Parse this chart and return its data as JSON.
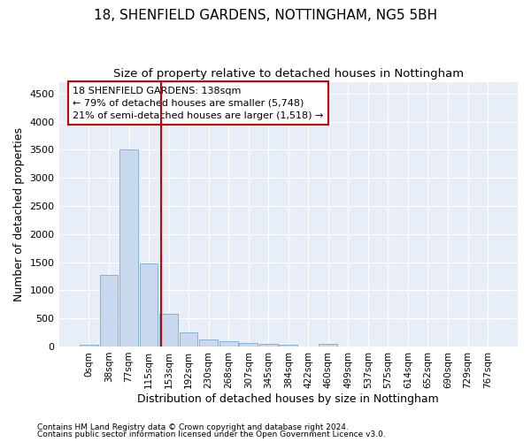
{
  "title": "18, SHENFIELD GARDENS, NOTTINGHAM, NG5 5BH",
  "subtitle": "Size of property relative to detached houses in Nottingham",
  "xlabel": "Distribution of detached houses by size in Nottingham",
  "ylabel": "Number of detached properties",
  "bar_labels": [
    "0sqm",
    "38sqm",
    "77sqm",
    "115sqm",
    "153sqm",
    "192sqm",
    "230sqm",
    "268sqm",
    "307sqm",
    "345sqm",
    "384sqm",
    "422sqm",
    "460sqm",
    "499sqm",
    "537sqm",
    "575sqm",
    "614sqm",
    "652sqm",
    "690sqm",
    "729sqm",
    "767sqm"
  ],
  "bar_values": [
    30,
    1270,
    3500,
    1480,
    580,
    250,
    130,
    100,
    70,
    40,
    30,
    0,
    40,
    0,
    0,
    0,
    0,
    0,
    0,
    0,
    0
  ],
  "bar_color": "#c8d8ee",
  "bar_edgecolor": "#7aaad0",
  "property_line_x": 3.6,
  "property_line_color": "#cc0000",
  "annotation_text": "18 SHENFIELD GARDENS: 138sqm\n← 79% of detached houses are smaller (5,748)\n21% of semi-detached houses are larger (1,518) →",
  "annotation_box_facecolor": "#ffffff",
  "annotation_box_edgecolor": "#cc0000",
  "ylim_max": 4700,
  "yticks": [
    0,
    500,
    1000,
    1500,
    2000,
    2500,
    3000,
    3500,
    4000,
    4500
  ],
  "footer1": "Contains HM Land Registry data © Crown copyright and database right 2024.",
  "footer2": "Contains public sector information licensed under the Open Government Licence v3.0.",
  "bg_color": "#ffffff",
  "plot_bg_color": "#e8eef8",
  "grid_color": "#ffffff",
  "title_fontsize": 11,
  "subtitle_fontsize": 9.5,
  "axis_label_fontsize": 9,
  "tick_fontsize": 7.5,
  "footer_fontsize": 6.5
}
